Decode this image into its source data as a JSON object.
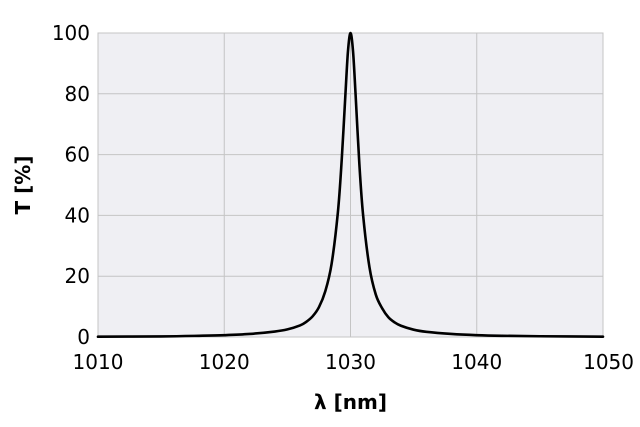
{
  "chart_data": {
    "type": "line",
    "title": "",
    "xlabel": "λ [nm]",
    "ylabel": "T [%]",
    "xlim": [
      1010,
      1050
    ],
    "ylim": [
      0,
      100
    ],
    "x_ticks": [
      1010,
      1020,
      1030,
      1040,
      1050
    ],
    "y_ticks": [
      0,
      20,
      40,
      60,
      80,
      100
    ],
    "x_tick_labels": [
      "1010",
      "1020",
      "1030",
      "1040",
      "1050"
    ],
    "y_tick_labels": [
      "0",
      "20",
      "40",
      "60",
      "80",
      "100"
    ],
    "grid": true,
    "legend": "none",
    "plot_background": "#efeff3",
    "line_color": "#000000",
    "series": [
      {
        "x": [
          1010,
          1015,
          1018,
          1020,
          1022,
          1024,
          1025,
          1026,
          1026.5,
          1027,
          1027.5,
          1028,
          1028.5,
          1029,
          1029.3,
          1029.6,
          1029.8,
          1030,
          1030.2,
          1030.4,
          1030.7,
          1031,
          1031.5,
          1032,
          1032.5,
          1033,
          1033.5,
          1034,
          1035,
          1036,
          1038,
          1040,
          1042,
          1045,
          1050
        ],
        "y": [
          0.1,
          0.2,
          0.4,
          0.6,
          1.0,
          1.8,
          2.5,
          3.8,
          5.0,
          6.8,
          9.8,
          15,
          24,
          41,
          58,
          80,
          94,
          100,
          94,
          80,
          57,
          40,
          23,
          14,
          9.5,
          6.5,
          4.8,
          3.7,
          2.4,
          1.7,
          1.0,
          0.6,
          0.4,
          0.25,
          0.12
        ]
      }
    ]
  }
}
